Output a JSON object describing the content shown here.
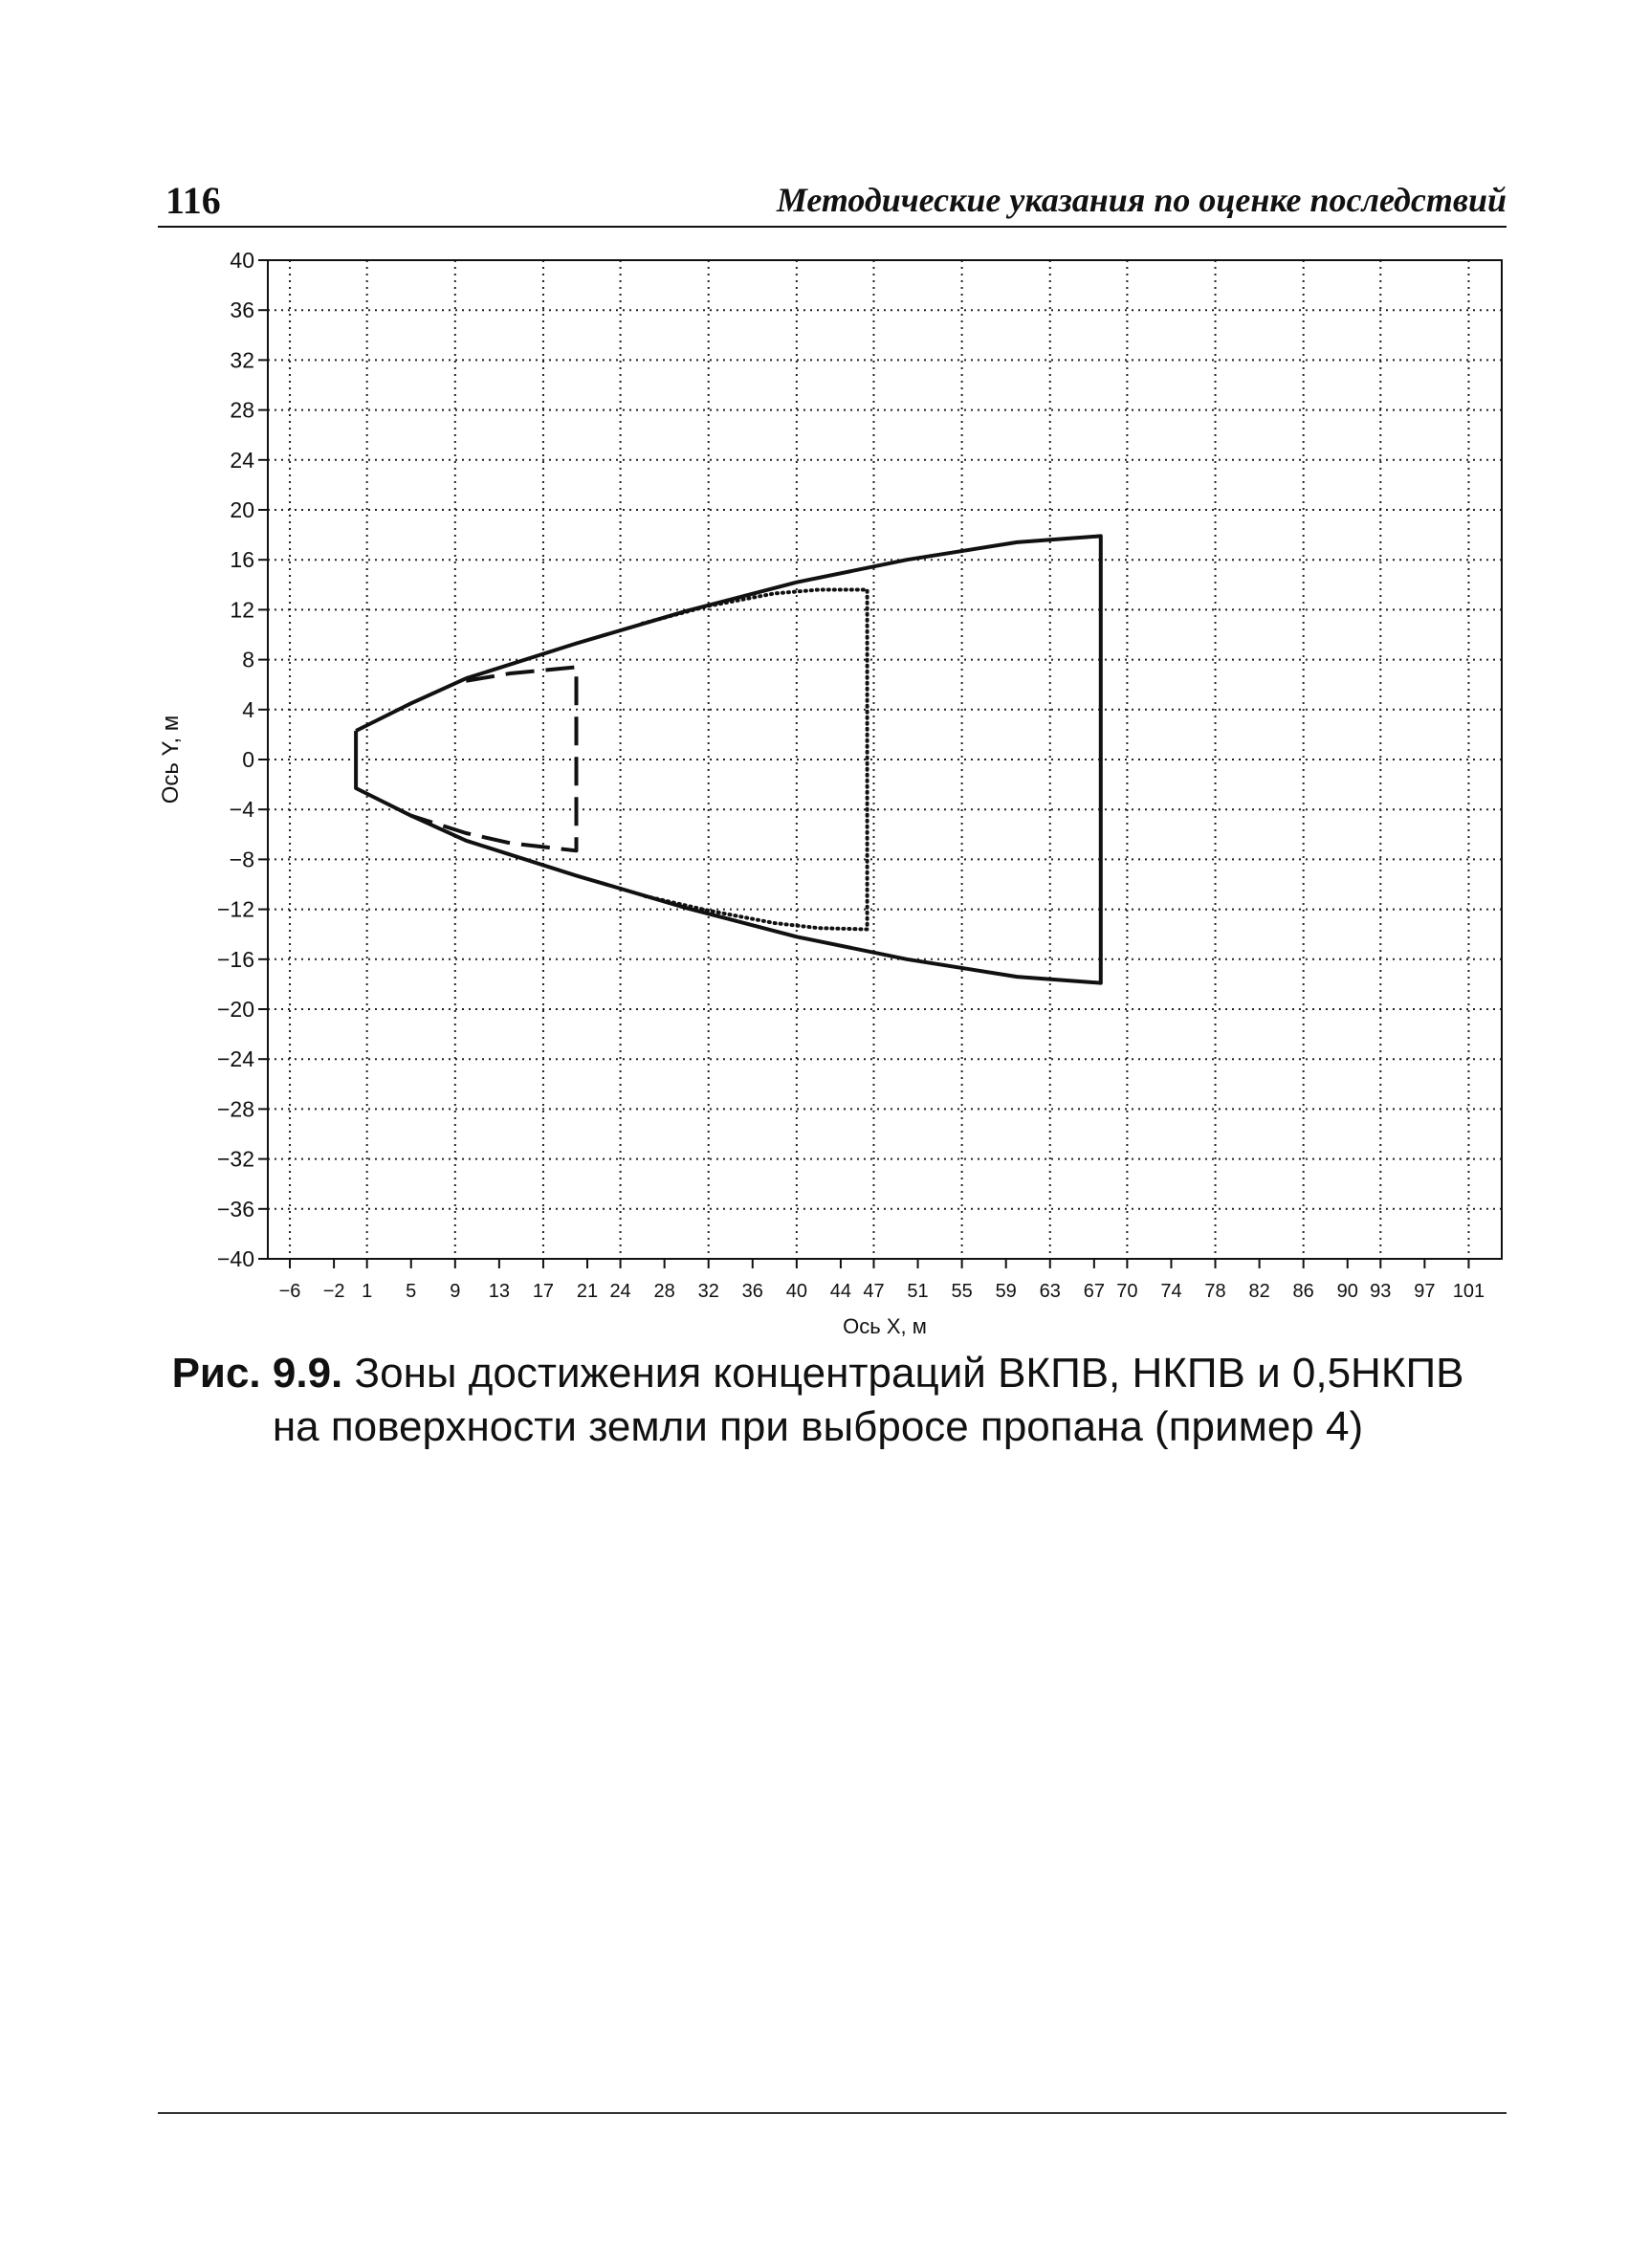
{
  "header": {
    "page_number": "116",
    "running_title": "Методические указания по оценке последствий"
  },
  "caption": {
    "label": "Рис. 9.9.",
    "line1": "Зоны достижения концентраций ВКПВ, НКПВ и 0,5НКПВ",
    "line2": "на поверхности земли при выбросе пропана (пример 4)"
  },
  "chart_data": {
    "type": "line",
    "title": "",
    "xlabel": "Ось X, м",
    "ylabel": "Ось Y, м",
    "xlim": [
      -8,
      104
    ],
    "ylim": [
      -40,
      40
    ],
    "x_ticks": [
      -6,
      -2,
      1,
      5,
      9,
      13,
      17,
      21,
      24,
      28,
      32,
      36,
      40,
      44,
      47,
      51,
      55,
      59,
      63,
      67,
      70,
      74,
      78,
      82,
      86,
      90,
      93,
      97,
      101
    ],
    "x_tick_labels": [
      "−6",
      "−2",
      "1",
      "5",
      "9",
      "13",
      "17",
      "21",
      "24",
      "28",
      "32",
      "36",
      "40",
      "44",
      "47",
      "51",
      "55",
      "59",
      "63",
      "67",
      "70",
      "74",
      "78",
      "82",
      "86",
      "90",
      "93",
      "97",
      "101"
    ],
    "y_ticks": [
      40,
      36,
      32,
      28,
      24,
      20,
      16,
      12,
      8,
      4,
      0,
      -4,
      -8,
      -12,
      -16,
      -20,
      -24,
      -28,
      -32,
      -36,
      -40
    ],
    "y_tick_labels": [
      "40",
      "36",
      "32",
      "28",
      "24",
      "20",
      "16",
      "12",
      "8",
      "4",
      "0",
      "−4",
      "−8",
      "−12",
      "−16",
      "−20",
      "−24",
      "−28",
      "−32",
      "−36",
      "−40"
    ],
    "grid": "dotted",
    "series": [
      {
        "style": "solid",
        "points": [
          [
            0,
            2.3
          ],
          [
            5,
            4.5
          ],
          [
            10,
            6.5
          ],
          [
            20,
            9.3
          ],
          [
            30,
            11.9
          ],
          [
            40,
            14.2
          ],
          [
            50,
            16
          ],
          [
            60,
            17.4
          ],
          [
            67.6,
            17.9
          ],
          [
            67.6,
            -17.9
          ],
          [
            60,
            -17.4
          ],
          [
            50,
            -16
          ],
          [
            40,
            -14.2
          ],
          [
            30,
            -11.9
          ],
          [
            20,
            -9.3
          ],
          [
            10,
            -6.5
          ],
          [
            5,
            -4.5
          ],
          [
            0,
            -2.3
          ],
          [
            0,
            2.3
          ]
        ]
      },
      {
        "style": "dotted",
        "points": [
          [
            26,
            10.9
          ],
          [
            32,
            12.3
          ],
          [
            38,
            13.3
          ],
          [
            42,
            13.6
          ],
          [
            46.4,
            13.6
          ],
          [
            46.4,
            -13.6
          ],
          [
            42,
            -13.5
          ],
          [
            38,
            -13.1
          ],
          [
            32,
            -12.1
          ],
          [
            26,
            -10.9
          ]
        ]
      },
      {
        "style": "dashed",
        "points": [
          [
            10,
            6.3
          ],
          [
            14,
            6.9
          ],
          [
            20,
            7.4
          ],
          [
            20,
            -7.3
          ],
          [
            14,
            -6.7
          ],
          [
            10,
            -5.9
          ],
          [
            5,
            -4.5
          ]
        ]
      }
    ]
  }
}
